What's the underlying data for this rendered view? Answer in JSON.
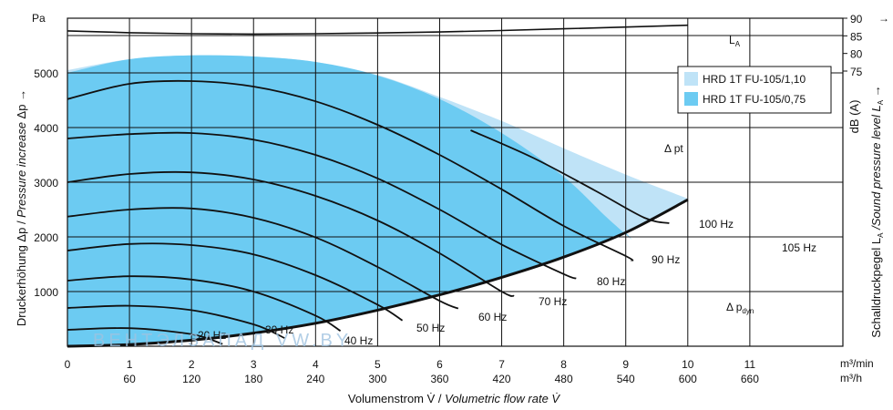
{
  "chart_data": {
    "type": "area",
    "y_unit": "Pa",
    "x_unit_top": "m³/min",
    "x_unit_bottom": "m³/h",
    "x_ticks_primary": [
      "0",
      "1",
      "2",
      "3",
      "4",
      "5",
      "6",
      "7",
      "8",
      "9",
      "10",
      "11"
    ],
    "x_ticks_secondary": [
      "60",
      "120",
      "180",
      "240",
      "300",
      "360",
      "420",
      "480",
      "540",
      "600",
      "660"
    ],
    "y_ticks": [
      "1000",
      "2000",
      "3000",
      "4000",
      "5000"
    ],
    "xlim": [
      0,
      12.5
    ],
    "ylim": [
      0,
      6000
    ],
    "right_axis": {
      "ticks": [
        "75",
        "80",
        "85",
        "90"
      ],
      "unit": "dB (A)",
      "label_prefix": "Schalldruckpegel L",
      "label_sub": "A",
      "label_suffix": " /Sound pressure level L",
      "label_sub2": "A",
      "label_end": " →",
      "range": [
        75,
        90
      ]
    },
    "xlabel_de": "Volumenstrom V̇ / ",
    "xlabel_en": "Volumetric flow rate V̇",
    "ylabel_de": "Druckerhöhung Δp / ",
    "ylabel_en": "Pressure increase",
    "ylabel_end": "  Δp →",
    "legend": [
      {
        "label": "HRD 1T FU-105/1,10",
        "color": "#bfe3f7"
      },
      {
        "label": "HRD 1T FU-105/0,75",
        "color": "#6ccbf2"
      }
    ],
    "series": [
      {
        "name": "HRD 1T FU-105/1,10",
        "x": [
          0,
          1,
          2,
          3,
          4,
          5,
          6,
          7,
          8,
          9,
          10
        ],
        "y": [
          5050,
          5250,
          5320,
          5300,
          5200,
          4960,
          4560,
          4120,
          3620,
          3140,
          2700
        ]
      },
      {
        "name": "HRD 1T FU-105/0,75",
        "x": [
          0,
          1,
          2,
          3,
          4,
          5,
          6,
          7,
          8,
          8.7,
          9.1
        ],
        "y": [
          5000,
          5250,
          5320,
          5300,
          5200,
          4950,
          4520,
          3900,
          3100,
          2350,
          1950
        ]
      }
    ],
    "frequency_curves": [
      {
        "label": "20 Hz",
        "x": [
          0,
          1,
          2,
          2.5
        ],
        "y": [
          300,
          330,
          220,
          40
        ]
      },
      {
        "label": "30 Hz",
        "x": [
          0,
          1,
          2,
          3,
          3.5
        ],
        "y": [
          700,
          740,
          660,
          400,
          150
        ]
      },
      {
        "label": "40 Hz",
        "x": [
          0,
          1,
          2,
          3,
          4,
          4.4
        ],
        "y": [
          1200,
          1280,
          1220,
          1000,
          560,
          280
        ]
      },
      {
        "label": "50 Hz",
        "x": [
          0,
          1,
          2,
          3,
          4,
          5,
          5.4
        ],
        "y": [
          1750,
          1870,
          1850,
          1680,
          1300,
          760,
          470
        ]
      },
      {
        "label": "60 Hz",
        "x": [
          0,
          1,
          2,
          3,
          4,
          5,
          6,
          6.3
        ],
        "y": [
          2370,
          2500,
          2520,
          2350,
          1990,
          1450,
          830,
          690
        ]
      },
      {
        "label": "70 Hz",
        "x": [
          0,
          1,
          2,
          3,
          4,
          5,
          6,
          7,
          7.2
        ],
        "y": [
          3000,
          3150,
          3180,
          3050,
          2750,
          2300,
          1700,
          1000,
          920
        ]
      },
      {
        "label": "80 Hz",
        "x": [
          0,
          1,
          2,
          3,
          4,
          5,
          6,
          7,
          8,
          8.2
        ],
        "y": [
          3800,
          3880,
          3900,
          3780,
          3500,
          3070,
          2500,
          1860,
          1320,
          1240
        ]
      },
      {
        "label": "90 Hz",
        "x": [
          0,
          1,
          2,
          3,
          4,
          5,
          6,
          7,
          8,
          9,
          9.1
        ],
        "y": [
          4520,
          4800,
          4850,
          4750,
          4480,
          4050,
          3500,
          2870,
          2200,
          1650,
          1560
        ]
      },
      {
        "label": "100 Hz",
        "x": [
          6.5,
          7.5,
          8.5,
          9.3,
          9.7
        ],
        "y": [
          3950,
          3450,
          2850,
          2350,
          2250
        ]
      }
    ],
    "system_curve": {
      "x": [
        0,
        1,
        2,
        3,
        4,
        5,
        6,
        7,
        8,
        9,
        10
      ],
      "y": [
        0,
        30,
        110,
        240,
        420,
        660,
        940,
        1260,
        1630,
        2080,
        2680
      ]
    },
    "sound_level_curve": {
      "label": "L",
      "label_sub": "A",
      "x": [
        0,
        1,
        2,
        3,
        4,
        5,
        6,
        7,
        8,
        9,
        10
      ],
      "y_dB": [
        86.4,
        85.9,
        85.6,
        85.5,
        85.6,
        85.8,
        86.1,
        86.5,
        87.0,
        87.5,
        88.0
      ]
    },
    "annotations": [
      {
        "text": "Δ pt"
      },
      {
        "text": "Δ p",
        "sub": "dyn"
      },
      {
        "text": "105 Hz"
      }
    ],
    "grid": true,
    "watermark": "ВЕНТЭЛЗАПАД  VW.BY"
  }
}
